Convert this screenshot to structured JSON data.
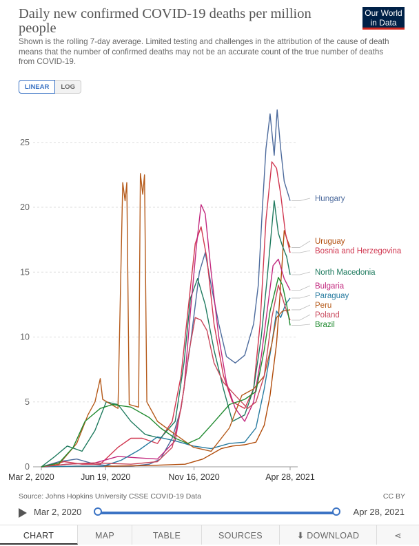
{
  "header": {
    "title": "Daily new confirmed COVID-19 deaths per million people",
    "subtitle": "Shown is the rolling 7-day average. Limited testing and challenges in the attribution of the cause of death means that the number of confirmed deaths may not be an accurate count of the true number of deaths from COVID-19.",
    "logo_line1": "Our World",
    "logo_line2": "in Data"
  },
  "controls": {
    "linear": "LINEAR",
    "log": "LOG"
  },
  "footer": {
    "source": "Source: Johns Hopkins University CSSE COVID-19 Data",
    "license": "CC BY",
    "timeline_start": "Mar 2, 2020",
    "timeline_end": "Apr 28, 2021"
  },
  "tabs": [
    "CHART",
    "MAP",
    "TABLE",
    "SOURCES",
    "DOWNLOAD"
  ],
  "icons": {
    "play": "play-icon",
    "share": "share-icon",
    "download": "download-icon"
  },
  "chart_data": {
    "type": "line",
    "y_ticks": [
      0,
      5,
      10,
      15,
      20,
      25
    ],
    "ylim": [
      0,
      28
    ],
    "x_ticks": [
      "Mar 2, 2020",
      "Jun 19, 2020",
      "Nov 16, 2020",
      "Apr 28, 2021"
    ],
    "x_tick_dates": [
      "2020-03-02",
      "2020-06-19",
      "2020-11-16",
      "2021-04-28"
    ],
    "x_range": [
      "2020-03-02",
      "2021-04-28"
    ],
    "grid": "horizontal-dashed",
    "legend": "right-end-labels",
    "series": [
      {
        "name": "Hungary",
        "color": "#4c6a9c",
        "points": [
          [
            "2020-03-02",
            0
          ],
          [
            "2020-04-01",
            0.4
          ],
          [
            "2020-05-01",
            0.6
          ],
          [
            "2020-06-01",
            0.2
          ],
          [
            "2020-07-01",
            0.05
          ],
          [
            "2020-08-01",
            0.05
          ],
          [
            "2020-09-01",
            0.2
          ],
          [
            "2020-09-20",
            0.6
          ],
          [
            "2020-10-10",
            2.2
          ],
          [
            "2020-10-25",
            4.5
          ],
          [
            "2020-11-10",
            9.5
          ],
          [
            "2020-11-25",
            15
          ],
          [
            "2020-12-05",
            16.5
          ],
          [
            "2020-12-15",
            14
          ],
          [
            "2020-12-28",
            11
          ],
          [
            "2021-01-10",
            8.5
          ],
          [
            "2021-01-25",
            8
          ],
          [
            "2021-02-10",
            8.6
          ],
          [
            "2021-02-25",
            11
          ],
          [
            "2021-03-05",
            14
          ],
          [
            "2021-03-12",
            20
          ],
          [
            "2021-03-18",
            24.5
          ],
          [
            "2021-03-25",
            27.2
          ],
          [
            "2021-04-01",
            24
          ],
          [
            "2021-04-06",
            27.5
          ],
          [
            "2021-04-12",
            24.5
          ],
          [
            "2021-04-18",
            22
          ],
          [
            "2021-04-28",
            20.5
          ]
        ]
      },
      {
        "name": "Uruguay",
        "color": "#b04a08",
        "points": [
          [
            "2020-03-02",
            0
          ],
          [
            "2020-05-01",
            0.05
          ],
          [
            "2020-07-01",
            0.05
          ],
          [
            "2020-09-01",
            0.1
          ],
          [
            "2020-11-01",
            0.2
          ],
          [
            "2020-12-01",
            0.6
          ],
          [
            "2021-01-01",
            1.4
          ],
          [
            "2021-01-20",
            1.6
          ],
          [
            "2021-02-10",
            1.7
          ],
          [
            "2021-03-01",
            1.9
          ],
          [
            "2021-03-15",
            3.2
          ],
          [
            "2021-03-25",
            5.5
          ],
          [
            "2021-04-05",
            9.5
          ],
          [
            "2021-04-12",
            14
          ],
          [
            "2021-04-18",
            18.2
          ],
          [
            "2021-04-23",
            17.5
          ],
          [
            "2021-04-28",
            16.9
          ]
        ]
      },
      {
        "name": "Bosnia and Herzegovina",
        "color": "#d0364f",
        "points": [
          [
            "2020-03-02",
            0
          ],
          [
            "2020-04-10",
            0.4
          ],
          [
            "2020-05-10",
            0.2
          ],
          [
            "2020-06-10",
            0.2
          ],
          [
            "2020-07-10",
            1.5
          ],
          [
            "2020-08-01",
            2.2
          ],
          [
            "2020-08-20",
            2.2
          ],
          [
            "2020-09-15",
            1.8
          ],
          [
            "2020-10-10",
            3.5
          ],
          [
            "2020-10-25",
            7
          ],
          [
            "2020-11-08",
            13
          ],
          [
            "2020-11-18",
            17.2
          ],
          [
            "2020-11-28",
            18.5
          ],
          [
            "2020-12-08",
            16
          ],
          [
            "2020-12-20",
            11
          ],
          [
            "2021-01-05",
            7
          ],
          [
            "2021-01-20",
            5
          ],
          [
            "2021-02-10",
            4.5
          ],
          [
            "2021-02-25",
            6
          ],
          [
            "2021-03-08",
            11
          ],
          [
            "2021-03-18",
            19
          ],
          [
            "2021-03-28",
            23.5
          ],
          [
            "2021-04-05",
            23
          ],
          [
            "2021-04-12",
            21
          ],
          [
            "2021-04-20",
            18
          ],
          [
            "2021-04-28",
            16.5
          ]
        ]
      },
      {
        "name": "North Macedonia",
        "color": "#1e7a5e",
        "points": [
          [
            "2020-03-02",
            0
          ],
          [
            "2020-03-25",
            0.8
          ],
          [
            "2020-04-15",
            1.6
          ],
          [
            "2020-05-10",
            1.2
          ],
          [
            "2020-06-01",
            2.8
          ],
          [
            "2020-06-20",
            5
          ],
          [
            "2020-07-10",
            4.8
          ],
          [
            "2020-08-01",
            3.5
          ],
          [
            "2020-08-25",
            2.5
          ],
          [
            "2020-09-20",
            2.2
          ],
          [
            "2020-10-15",
            3.5
          ],
          [
            "2020-10-30",
            8
          ],
          [
            "2020-11-10",
            13
          ],
          [
            "2020-11-22",
            14.5
          ],
          [
            "2020-12-05",
            12.5
          ],
          [
            "2020-12-20",
            9
          ],
          [
            "2021-01-05",
            6
          ],
          [
            "2021-01-20",
            3.5
          ],
          [
            "2021-02-10",
            4
          ],
          [
            "2021-02-25",
            6
          ],
          [
            "2021-03-10",
            10
          ],
          [
            "2021-03-20",
            14.5
          ],
          [
            "2021-04-01",
            20.5
          ],
          [
            "2021-04-08",
            18
          ],
          [
            "2021-04-15",
            17
          ],
          [
            "2021-04-22",
            16.2
          ],
          [
            "2021-04-28",
            14.8
          ]
        ]
      },
      {
        "name": "Bulgaria",
        "color": "#c2287e",
        "points": [
          [
            "2020-03-02",
            0
          ],
          [
            "2020-04-15",
            0.2
          ],
          [
            "2020-06-01",
            0.3
          ],
          [
            "2020-07-10",
            0.8
          ],
          [
            "2020-08-10",
            0.7
          ],
          [
            "2020-09-15",
            0.6
          ],
          [
            "2020-10-15",
            2
          ],
          [
            "2020-10-30",
            6
          ],
          [
            "2020-11-10",
            12
          ],
          [
            "2020-11-20",
            17
          ],
          [
            "2020-11-28",
            20.2
          ],
          [
            "2020-12-05",
            19.5
          ],
          [
            "2020-12-15",
            15
          ],
          [
            "2020-12-28",
            10
          ],
          [
            "2021-01-10",
            6.5
          ],
          [
            "2021-01-25",
            4.5
          ],
          [
            "2021-02-10",
            3.5
          ],
          [
            "2021-02-25",
            5
          ],
          [
            "2021-03-10",
            8.5
          ],
          [
            "2021-03-20",
            12
          ],
          [
            "2021-03-30",
            15.5
          ],
          [
            "2021-04-08",
            16
          ],
          [
            "2021-04-18",
            14.5
          ],
          [
            "2021-04-28",
            13.6
          ]
        ]
      },
      {
        "name": "Paraguay",
        "color": "#287ba0",
        "points": [
          [
            "2020-03-02",
            0
          ],
          [
            "2020-05-01",
            0.05
          ],
          [
            "2020-06-15",
            0.05
          ],
          [
            "2020-07-15",
            0.5
          ],
          [
            "2020-08-15",
            1.3
          ],
          [
            "2020-09-15",
            2.3
          ],
          [
            "2020-10-15",
            2
          ],
          [
            "2020-11-15",
            1.6
          ],
          [
            "2020-12-15",
            1.4
          ],
          [
            "2021-01-15",
            1.8
          ],
          [
            "2021-02-10",
            1.9
          ],
          [
            "2021-03-01",
            3
          ],
          [
            "2021-03-15",
            6
          ],
          [
            "2021-03-28",
            9.5
          ],
          [
            "2021-04-05",
            12
          ],
          [
            "2021-04-12",
            11.5
          ],
          [
            "2021-04-20",
            12.5
          ],
          [
            "2021-04-28",
            13
          ]
        ]
      },
      {
        "name": "Peru",
        "color": "#b55a1a",
        "points": [
          [
            "2020-03-02",
            0
          ],
          [
            "2020-04-01",
            0.2
          ],
          [
            "2020-05-01",
            1.8
          ],
          [
            "2020-05-20",
            4
          ],
          [
            "2020-06-01",
            5
          ],
          [
            "2020-06-10",
            6.8
          ],
          [
            "2020-06-14",
            5.2
          ],
          [
            "2020-07-10",
            4.5
          ],
          [
            "2020-07-18",
            21.9
          ],
          [
            "2020-07-22",
            20.5
          ],
          [
            "2020-07-25",
            21.9
          ],
          [
            "2020-07-29",
            4.8
          ],
          [
            "2020-08-14",
            4.6
          ],
          [
            "2020-08-17",
            22.6
          ],
          [
            "2020-08-21",
            21
          ],
          [
            "2020-08-24",
            22.5
          ],
          [
            "2020-08-28",
            5
          ],
          [
            "2020-09-15",
            3.5
          ],
          [
            "2020-10-15",
            2.5
          ],
          [
            "2020-11-15",
            1.5
          ],
          [
            "2020-12-15",
            1.2
          ],
          [
            "2021-01-15",
            3
          ],
          [
            "2021-02-05",
            5.5
          ],
          [
            "2021-02-25",
            6
          ],
          [
            "2021-03-15",
            7
          ],
          [
            "2021-03-28",
            9.5
          ],
          [
            "2021-04-05",
            11.5
          ],
          [
            "2021-04-15",
            12
          ],
          [
            "2021-04-28",
            12.1
          ]
        ]
      },
      {
        "name": "Poland",
        "color": "#c8475b",
        "points": [
          [
            "2020-03-02",
            0
          ],
          [
            "2020-04-15",
            0.2
          ],
          [
            "2020-06-01",
            0.3
          ],
          [
            "2020-08-01",
            0.2
          ],
          [
            "2020-09-15",
            0.4
          ],
          [
            "2020-10-10",
            1.5
          ],
          [
            "2020-10-25",
            4.5
          ],
          [
            "2020-11-08",
            9
          ],
          [
            "2020-11-18",
            11.5
          ],
          [
            "2020-11-28",
            11.3
          ],
          [
            "2020-12-08",
            10.5
          ],
          [
            "2020-12-20",
            8
          ],
          [
            "2021-01-05",
            6.5
          ],
          [
            "2021-01-25",
            5.5
          ],
          [
            "2021-02-15",
            4.5
          ],
          [
            "2021-03-01",
            5
          ],
          [
            "2021-03-15",
            7
          ],
          [
            "2021-03-28",
            11.5
          ],
          [
            "2021-04-08",
            14
          ],
          [
            "2021-04-15",
            13
          ],
          [
            "2021-04-22",
            12
          ],
          [
            "2021-04-28",
            11.3
          ]
        ]
      },
      {
        "name": "Brazil",
        "color": "#1f8a2f",
        "points": [
          [
            "2020-03-02",
            0
          ],
          [
            "2020-04-01",
            0.3
          ],
          [
            "2020-04-25",
            1.5
          ],
          [
            "2020-05-15",
            3.5
          ],
          [
            "2020-06-10",
            4.5
          ],
          [
            "2020-07-01",
            4.8
          ],
          [
            "2020-08-01",
            4.6
          ],
          [
            "2020-09-01",
            3.8
          ],
          [
            "2020-09-20",
            3
          ],
          [
            "2020-10-15",
            2.2
          ],
          [
            "2020-11-05",
            1.8
          ],
          [
            "2020-11-25",
            2.2
          ],
          [
            "2020-12-15",
            3.2
          ],
          [
            "2021-01-15",
            4.8
          ],
          [
            "2021-02-10",
            5.2
          ],
          [
            "2021-03-01",
            5.8
          ],
          [
            "2021-03-15",
            9
          ],
          [
            "2021-03-25",
            12
          ],
          [
            "2021-04-08",
            14.6
          ],
          [
            "2021-04-15",
            14
          ],
          [
            "2021-04-22",
            12.5
          ],
          [
            "2021-04-28",
            10.9
          ]
        ]
      }
    ]
  }
}
